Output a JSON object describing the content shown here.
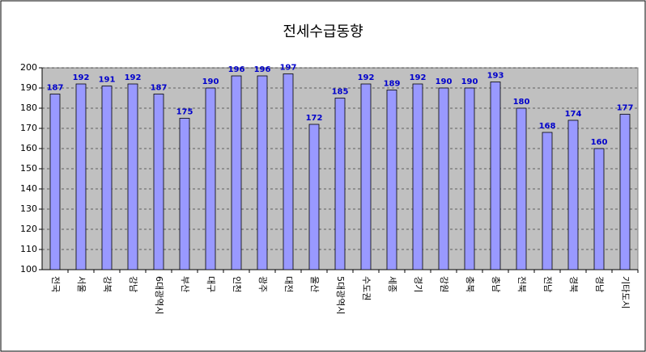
{
  "chart_data": {
    "type": "bar",
    "title": "전세수급동향",
    "categories": [
      "전국",
      "서울",
      "강북",
      "강남",
      "6대광역시",
      "부산",
      "대구",
      "인천",
      "광주",
      "대전",
      "울산",
      "5대광역시",
      "수도권",
      "세종",
      "경기",
      "강원",
      "충북",
      "충남",
      "전북",
      "전남",
      "경북",
      "경남",
      "기타도시"
    ],
    "values": [
      187,
      192,
      191,
      192,
      187,
      175,
      190,
      196,
      196,
      197,
      172,
      185,
      192,
      189,
      192,
      190,
      190,
      193,
      180,
      168,
      174,
      160,
      177
    ],
    "color": "#9999ff",
    "ylim": [
      100,
      200
    ],
    "yticks": [
      100,
      110,
      120,
      130,
      140,
      150,
      160,
      170,
      180,
      190,
      200
    ],
    "grid": true
  }
}
